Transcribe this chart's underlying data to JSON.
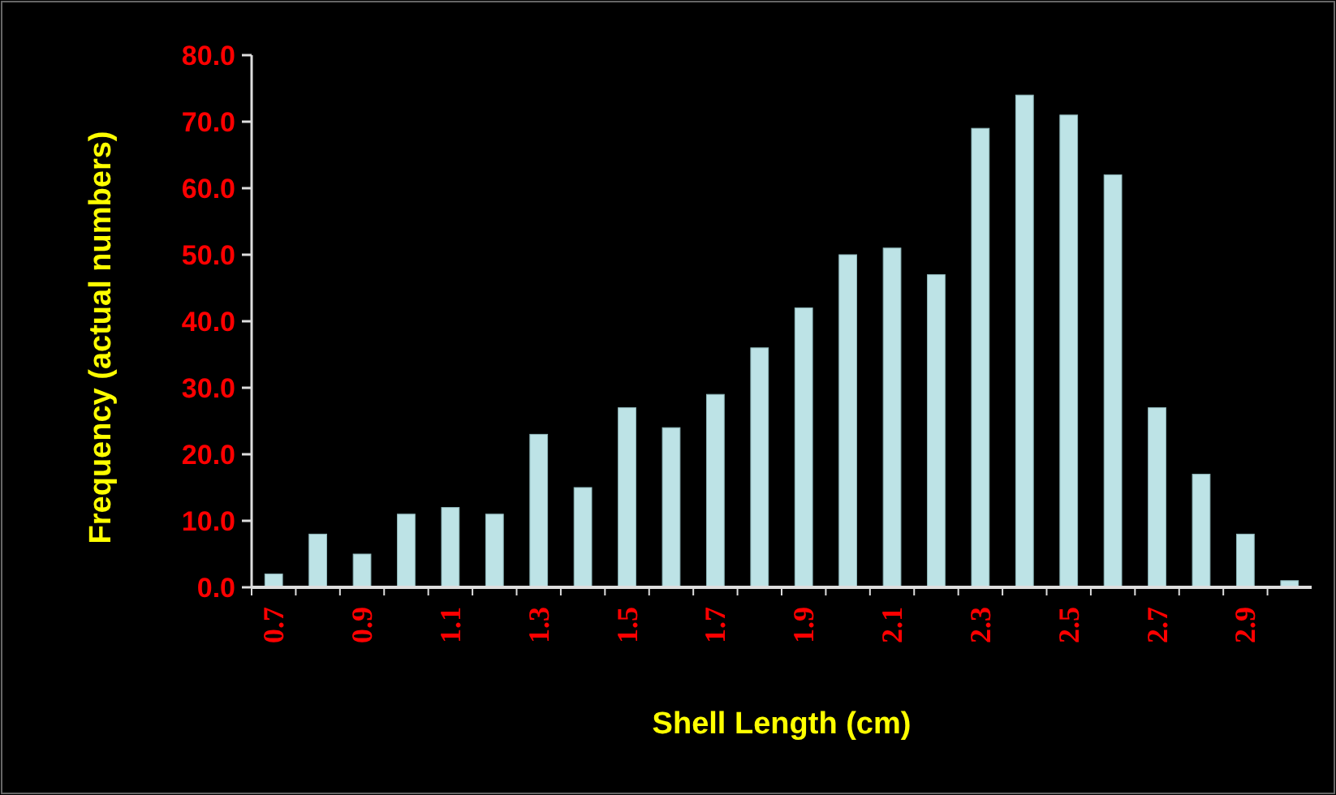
{
  "chart_data": {
    "type": "bar",
    "xlabel": "Shell Length (cm)",
    "ylabel": "Frequency (actual numbers)",
    "categories": [
      "0.7",
      null,
      "0.9",
      null,
      "1.1",
      null,
      "1.3",
      null,
      "1.5",
      null,
      "1.7",
      null,
      "1.9",
      null,
      "2.1",
      null,
      "2.3",
      null,
      "2.5",
      null,
      "2.7",
      null,
      "2.9",
      null
    ],
    "values": [
      2,
      8,
      5,
      11,
      12,
      11,
      23,
      15,
      27,
      24,
      29,
      36,
      42,
      50,
      51,
      47,
      69,
      74,
      71,
      62,
      27,
      17,
      8,
      1
    ],
    "color": "#bde3e6",
    "ylim": [
      0,
      80
    ],
    "yticks": [
      {
        "value": 0,
        "label": "0.0"
      },
      {
        "value": 10,
        "label": "10.0"
      },
      {
        "value": 20,
        "label": "20.0"
      },
      {
        "value": 30,
        "label": "30.0"
      },
      {
        "value": 40,
        "label": "40.0"
      },
      {
        "value": 50,
        "label": "50.0"
      },
      {
        "value": 60,
        "label": "60.0"
      },
      {
        "value": 70,
        "label": "70.0"
      },
      {
        "value": 80,
        "label": "80.0"
      }
    ],
    "grid": false
  }
}
